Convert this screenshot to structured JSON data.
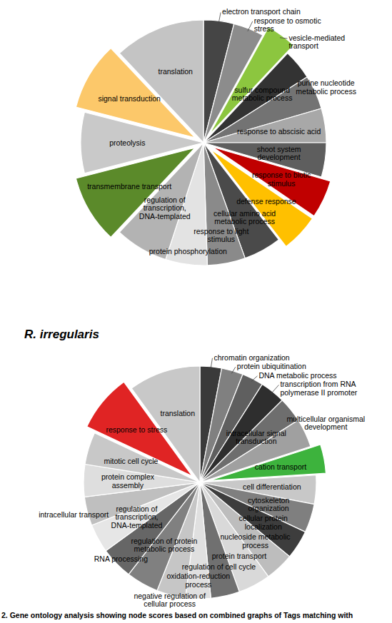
{
  "chart_data": [
    {
      "type": "pie",
      "categories": [
        "electron transport chain",
        "response to osmotic stress",
        "vesicle-mediated transport",
        "sulfur compound metabolic process",
        "purine nucleotide metabolic process",
        "response to abscisic acid",
        "shoot system development",
        "response to biotic stimulus",
        "defense response",
        "cellular amino acid metabolic process",
        "response to light stimulus",
        "protein phosphorylation",
        "regulation of transcription, DNA-templated",
        "transmembrane transport",
        "proteolysis",
        "signal transduction",
        "translation"
      ],
      "values": [
        4,
        4,
        4,
        4,
        4.5,
        4.5,
        4.5,
        5,
        5,
        5,
        5,
        5.5,
        7,
        9,
        8,
        9,
        12
      ],
      "colors": [
        "#454545",
        "#8c8c8c",
        "#8cc63f",
        "#333333",
        "#737373",
        "#a8a8a8",
        "#5e5e5e",
        "#c00000",
        "#ffc000",
        "#4a4a4a",
        "#8a8a8a",
        "#e3e3e3",
        "#b3b3b3",
        "#5b8a2a",
        "#c9c9c9",
        "#fcc86a",
        "#c4c4c4"
      ]
    },
    {
      "type": "pie",
      "title": "R. irregularis",
      "categories": [
        "chromatin organization",
        "protein ubiquitination",
        "DNA metabolic process",
        "transcription from RNA polymerase II promoter",
        "intracellular signal transduction",
        "multicellular organismal development",
        "cation transport",
        "cell differentiation",
        "cytoskeleton organization",
        "cellular protein localization",
        "nucleoside metabolic process",
        "protein transport",
        "regulation of cell cycle",
        "oxidation-reduction process",
        "negative regulation of cellular process",
        "regulation of protein metabolic process",
        "RNA processing",
        "regulation of transcription, DNA-templated",
        "intracellular transport",
        "protein complex assembly",
        "mitotic cell cycle",
        "response to stress",
        "translation"
      ],
      "values": [
        3,
        3,
        3,
        3.5,
        3.5,
        4,
        4,
        4,
        4,
        4,
        4,
        4.5,
        4,
        3.5,
        4,
        4.5,
        4.5,
        4,
        4,
        4.5,
        4.5,
        8,
        10
      ],
      "colors": [
        "#3a3a3a",
        "#808080",
        "#5f5f5f",
        "#2e2e2e",
        "#6e6e6e",
        "#a0a0a0",
        "#3db33d",
        "#c8c8c8",
        "#7f7f7f",
        "#3d3d3d",
        "#bdbdbd",
        "#d9d9d9",
        "#707070",
        "#e0e0e0",
        "#c6c6c6",
        "#808080",
        "#666666",
        "#e6e6e6",
        "#bfbfbf",
        "#dedede",
        "#c8c8c8",
        "#e02424",
        "#c8c8c8"
      ]
    }
  ],
  "caption": "2. Gene ontology analysis showing node scores based on combined graphs of Tags matching with"
}
